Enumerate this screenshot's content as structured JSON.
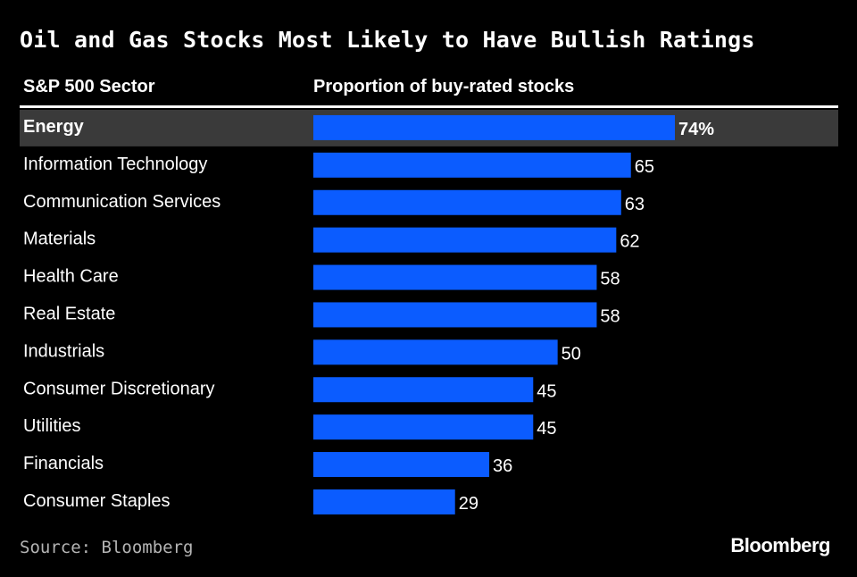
{
  "title": "Oil and Gas Stocks Most Likely to Have Bullish Ratings",
  "columns": {
    "sector": "S&P 500 Sector",
    "proportion": "Proportion of buy-rated stocks"
  },
  "source": "Source: Bloomberg",
  "brand": "Bloomberg",
  "colors": {
    "bar": "#0b5cff",
    "highlight_row": "#3a3a3a",
    "background": "#000000",
    "text": "#ffffff"
  },
  "chart_data": {
    "type": "bar",
    "orientation": "horizontal",
    "title": "Oil and Gas Stocks Most Likely to Have Bullish Ratings",
    "xlabel": "Proportion of buy-rated stocks",
    "ylabel": "S&P 500 Sector",
    "categories": [
      "Energy",
      "Information Technology",
      "Communication Services",
      "Materials",
      "Health Care",
      "Real Estate",
      "Industrials",
      "Consumer Discretionary",
      "Utilities",
      "Financials",
      "Consumer Staples"
    ],
    "values": [
      74,
      65,
      63,
      62,
      58,
      58,
      50,
      45,
      45,
      36,
      29
    ],
    "value_labels": [
      "74%",
      "65",
      "63",
      "62",
      "58",
      "58",
      "50",
      "45",
      "45",
      "36",
      "29"
    ],
    "highlighted_category": "Energy",
    "xlim": [
      0,
      100
    ],
    "grid": false,
    "legend": "none"
  }
}
